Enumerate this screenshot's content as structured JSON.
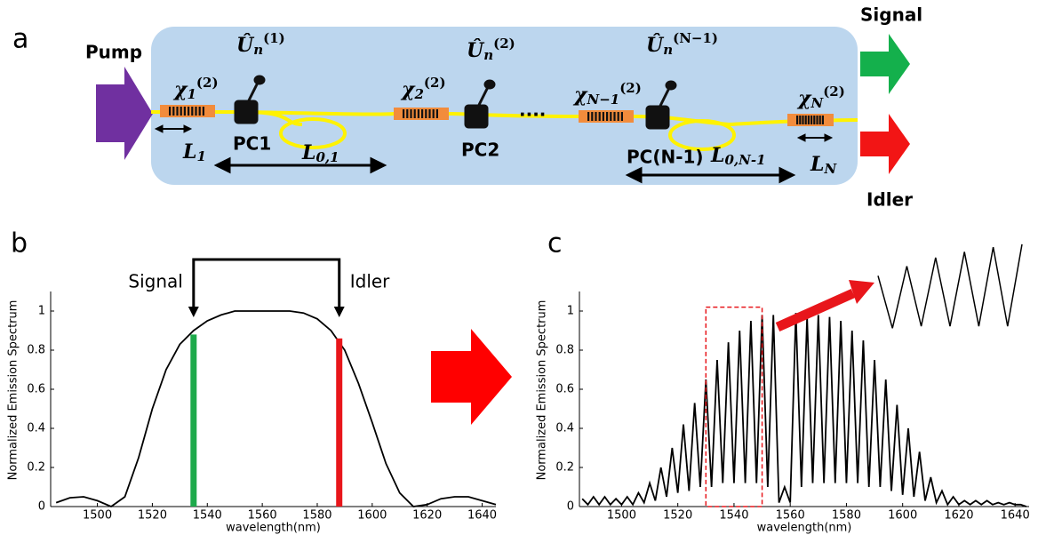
{
  "panels": {
    "a": "a",
    "b": "b",
    "c": "c"
  },
  "diagram": {
    "pump": "Pump",
    "signal": "Signal",
    "idler": "Idler",
    "ellipsis": "····",
    "crystals": [
      {
        "symbol": "χ",
        "order": "(2)",
        "index": "1",
        "length": "L",
        "length_index": "1"
      },
      {
        "symbol": "χ",
        "order": "(2)",
        "index": "2"
      },
      {
        "symbol": "χ",
        "order": "(2)",
        "index": "N−1"
      },
      {
        "symbol": "χ",
        "order": "(2)",
        "index": "N",
        "length": "L",
        "length_index": "N"
      }
    ],
    "controllers": [
      {
        "operator": "Û",
        "mode": "n",
        "order": "(1)",
        "label": "PC1"
      },
      {
        "operator": "Û",
        "mode": "n",
        "order": "(2)",
        "label": "PC2"
      },
      {
        "operator": "Û",
        "mode": "n",
        "order": "(N−1)",
        "label": "PC(N-1)"
      }
    ],
    "fibers": [
      {
        "length": "L",
        "index": "0,1"
      },
      {
        "length": "L",
        "index": "0,N-1"
      }
    ]
  },
  "chart_data": [
    {
      "type": "line",
      "ylabel": "Normalized Emission Spectrum",
      "xlabel": "wavelength(nm)",
      "xlim": [
        1483,
        1645
      ],
      "ylim": [
        0,
        1.1
      ],
      "xticks": [
        1500,
        1520,
        1540,
        1560,
        1580,
        1600,
        1620,
        1640
      ],
      "yticks": [
        0,
        0.2,
        0.4,
        0.6,
        0.8,
        1
      ],
      "x": [
        1485,
        1490,
        1495,
        1500,
        1505,
        1510,
        1515,
        1520,
        1525,
        1530,
        1535,
        1540,
        1545,
        1550,
        1555,
        1560,
        1565,
        1570,
        1575,
        1580,
        1585,
        1590,
        1595,
        1600,
        1605,
        1610,
        1615,
        1620,
        1625,
        1630,
        1635,
        1640,
        1645
      ],
      "series": [
        {
          "color": "#000000",
          "values": [
            0.02,
            0.045,
            0.05,
            0.03,
            0.0,
            0.05,
            0.25,
            0.5,
            0.7,
            0.83,
            0.9,
            0.95,
            0.98,
            1.0,
            1.0,
            1.0,
            1.0,
            1.0,
            0.99,
            0.96,
            0.9,
            0.8,
            0.63,
            0.43,
            0.22,
            0.07,
            0.0,
            0.01,
            0.04,
            0.05,
            0.05,
            0.03,
            0.01
          ]
        }
      ],
      "markers": [
        {
          "label": "Signal",
          "x": 1535,
          "y": 0.88,
          "color": "#1daa4b"
        },
        {
          "label": "Idler",
          "x": 1588,
          "y": 0.86,
          "color": "#e8161b"
        }
      ]
    },
    {
      "type": "line",
      "ylabel": "Normalized Emission Spectrum",
      "xlabel": "wavelength(nm)",
      "xlim": [
        1485,
        1645
      ],
      "ylim": [
        0,
        1.1
      ],
      "xticks": [
        1500,
        1520,
        1540,
        1560,
        1580,
        1600,
        1620,
        1640
      ],
      "yticks": [
        0,
        0.2,
        0.4,
        0.6,
        0.8,
        1
      ],
      "x": [
        1486,
        1488,
        1490,
        1492,
        1494,
        1496,
        1498,
        1500,
        1502,
        1504,
        1506,
        1508,
        1510,
        1512,
        1514,
        1516,
        1518,
        1520,
        1522,
        1524,
        1526,
        1528,
        1530,
        1532,
        1534,
        1536,
        1538,
        1540,
        1542,
        1544,
        1546,
        1548,
        1550,
        1552,
        1554,
        1556,
        1558,
        1560,
        1562,
        1564,
        1566,
        1568,
        1570,
        1572,
        1574,
        1576,
        1578,
        1580,
        1582,
        1584,
        1586,
        1588,
        1590,
        1592,
        1594,
        1596,
        1598,
        1600,
        1602,
        1604,
        1606,
        1608,
        1610,
        1612,
        1614,
        1616,
        1618,
        1620,
        1622,
        1624,
        1626,
        1628,
        1630,
        1632,
        1634,
        1636,
        1638,
        1640,
        1642,
        1644
      ],
      "series": [
        {
          "color": "#000000",
          "values": [
            0.04,
            0.01,
            0.05,
            0.01,
            0.05,
            0.01,
            0.04,
            0.01,
            0.05,
            0.01,
            0.07,
            0.02,
            0.12,
            0.03,
            0.2,
            0.05,
            0.3,
            0.07,
            0.42,
            0.08,
            0.53,
            0.1,
            0.65,
            0.1,
            0.75,
            0.12,
            0.84,
            0.12,
            0.9,
            0.12,
            0.95,
            0.12,
            0.98,
            0.1,
            0.98,
            0.02,
            0.1,
            0.02,
            0.99,
            0.1,
            0.97,
            0.12,
            0.98,
            0.12,
            0.97,
            0.12,
            0.95,
            0.12,
            0.9,
            0.12,
            0.85,
            0.1,
            0.75,
            0.1,
            0.65,
            0.08,
            0.52,
            0.06,
            0.4,
            0.05,
            0.28,
            0.03,
            0.15,
            0.02,
            0.08,
            0.01,
            0.05,
            0.01,
            0.03,
            0.01,
            0.03,
            0.01,
            0.03,
            0.01,
            0.02,
            0.01,
            0.02,
            0.01,
            0.01,
            0.0
          ]
        }
      ],
      "highlight": {
        "xlim": [
          1530,
          1550
        ],
        "ylim": [
          0,
          1.02
        ],
        "color": "#e8161b"
      }
    }
  ]
}
